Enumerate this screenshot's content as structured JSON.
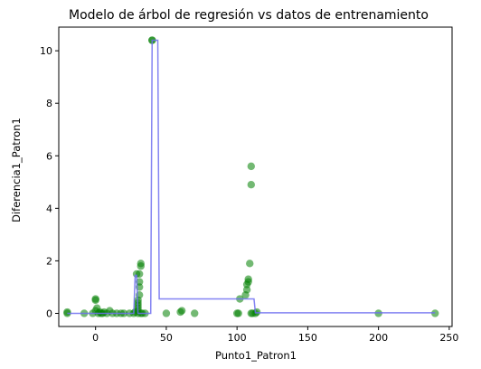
{
  "chart_data": {
    "type": "scatter",
    "title": "Modelo de árbol de regresión vs datos de entrenamiento",
    "xlabel": "Punto1_Patron1",
    "ylabel": "Diferencia1_Patron1",
    "xlim": [
      -26,
      252
    ],
    "ylim": [
      -0.5,
      10.9
    ],
    "xticks": [
      0,
      50,
      100,
      150,
      200,
      250
    ],
    "yticks": [
      0,
      2,
      4,
      6,
      8,
      10
    ],
    "grid": false,
    "colors": {
      "points": "#008000",
      "line": "#6f6ff0",
      "axes": "#000000"
    },
    "series": [
      {
        "kind": "scatter",
        "x": [
          -20,
          -20,
          -8,
          -2,
          0,
          0,
          0,
          1,
          2,
          3,
          4,
          5,
          6,
          8,
          10,
          12,
          15,
          18,
          20,
          24,
          27,
          28,
          29,
          30,
          30,
          30,
          30,
          30,
          30,
          31,
          31,
          31,
          31,
          32,
          32,
          32,
          33,
          35,
          40,
          40,
          50,
          60,
          61,
          70,
          100,
          101,
          102,
          106,
          107,
          107,
          108,
          108,
          109,
          110,
          110,
          110,
          111,
          113,
          114,
          200,
          240
        ],
        "y": [
          0,
          0.05,
          0,
          0,
          0.5,
          0.55,
          0.1,
          0.2,
          0,
          0.05,
          0,
          0,
          0.05,
          0,
          0.1,
          0,
          0,
          0,
          0,
          0,
          0,
          0.05,
          1.5,
          0,
          0.1,
          0.2,
          0.3,
          0.4,
          0.5,
          0.7,
          1.0,
          1.2,
          1.5,
          1.8,
          1.9,
          0,
          0,
          0,
          10.4,
          10.4,
          0,
          0.05,
          0.1,
          0,
          0,
          0,
          0.55,
          0.7,
          0.9,
          1.1,
          1.2,
          1.3,
          1.9,
          0,
          5.6,
          4.9,
          0,
          0,
          0.05,
          0,
          0
        ]
      },
      {
        "kind": "line",
        "x": [
          -20,
          27,
          28,
          29,
          30,
          30,
          39,
          40,
          44,
          45,
          101,
          103,
          112,
          113,
          240
        ],
        "y": [
          0,
          0,
          1.45,
          1.45,
          0,
          0,
          0,
          10.4,
          10.4,
          0.55,
          0.55,
          0.55,
          0.55,
          0.02,
          0.02
        ]
      }
    ]
  }
}
